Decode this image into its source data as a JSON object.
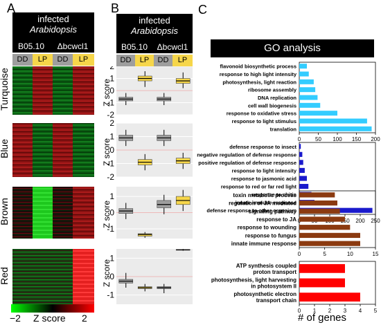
{
  "panels": {
    "a": "A",
    "b": "B",
    "c": "C"
  },
  "header": {
    "line1": "infected",
    "line2": "Arabidopsis"
  },
  "strains": {
    "wt": "B05.10",
    "mut": "Δbcwcl1"
  },
  "conditions": {
    "dd": "DD",
    "lp": "LP"
  },
  "modules": [
    "Turquoise",
    "Blue",
    "Brown",
    "Red"
  ],
  "zaxis": {
    "label": "Z score",
    "ticks": [
      "2",
      "1",
      "0",
      "-1",
      "-2"
    ],
    "ticks_short": [
      "1",
      "0",
      "-1"
    ]
  },
  "colorbar": {
    "min": "−2",
    "label": "Z score",
    "max": "2",
    "colors": [
      "#00ff00",
      "#000000",
      "#ff0000"
    ]
  },
  "go": {
    "title": "GO analysis",
    "xlabel": "# of genes"
  },
  "chart_data": [
    {
      "type": "bar",
      "orientation": "horizontal",
      "color": "#33ccff",
      "categories": [
        "flavonoid biosynthetic process",
        "response to high light intensity",
        "photosynthesis, light reaction",
        "ribosome assembly",
        "DNA replication",
        "cell wall biogenesis",
        "response to oxidative stress",
        "response to light stimulus",
        "translation"
      ],
      "values": [
        20,
        25,
        38,
        42,
        48,
        55,
        100,
        178,
        190
      ],
      "xlim": [
        0,
        200
      ],
      "xticks": [
        "0",
        "50",
        "100",
        "150",
        "200"
      ]
    },
    {
      "type": "bar",
      "orientation": "horizontal",
      "color": "#1a1acc",
      "categories": [
        "defense response to insect",
        "negative regulation of defense response",
        "positive regulation of defense response",
        "response to light intensity",
        "response to jasmonic acid",
        "response to red or far red light",
        "response to chitin",
        "innate immune response",
        "defense response to other organism"
      ],
      "values": [
        5,
        10,
        13,
        18,
        25,
        30,
        40,
        50,
        240
      ],
      "xlim": [
        0,
        250
      ],
      "xticks": [
        "0",
        "50",
        "100",
        "150",
        "200",
        "250"
      ]
    },
    {
      "type": "bar",
      "orientation": "horizontal",
      "color": "#8b3a10",
      "categories": [
        "toxin metabolic process",
        "regulation of JA mediated",
        "signaling pathway",
        "response to JA",
        "response to wounding",
        "response to fungus",
        "innate immune response"
      ],
      "values": [
        7,
        7.5,
        8,
        9,
        10,
        12,
        12
      ],
      "xlim": [
        0,
        15
      ],
      "xticks": [
        "0",
        "5",
        "10",
        "15"
      ]
    },
    {
      "type": "bar",
      "orientation": "horizontal",
      "color": "#ff0000",
      "categories": [
        "ATP synthesis coupled proton transport",
        "photosynthesis, light harvesting in photosystem II",
        "photosynthetic electron transport chain"
      ],
      "category_lines": [
        [
          "ATP synthesis coupled",
          "proton transport"
        ],
        [
          "photosynthesis, light harvesting",
          "in photosystem II"
        ],
        [
          "photosynthetic electron",
          "transport chain"
        ]
      ],
      "values": [
        3,
        3,
        4
      ],
      "xlim": [
        0,
        5
      ],
      "xticks": [
        "0",
        "1",
        "2",
        "3",
        "4",
        "5"
      ]
    }
  ],
  "boxplots": [
    {
      "module": "Turquoise",
      "ylim": [
        -2,
        2
      ],
      "boxes": [
        {
          "group": "B05.10 DD",
          "median": -0.7,
          "q1": -0.85,
          "q3": -0.55,
          "whisker_low": -1.2,
          "whisker_high": -0.2,
          "color": "#9e9e9e"
        },
        {
          "group": "B05.10 LP",
          "median": 1.0,
          "q1": 0.8,
          "q3": 1.2,
          "whisker_low": 0.3,
          "whisker_high": 1.6,
          "color": "#f6d64a"
        },
        {
          "group": "Δbcwcl1 DD",
          "median": -0.7,
          "q1": -0.85,
          "q3": -0.55,
          "whisker_low": -1.2,
          "whisker_high": -0.2,
          "color": "#9e9e9e"
        },
        {
          "group": "Δbcwcl1 LP",
          "median": 0.8,
          "q1": 0.6,
          "q3": 1.0,
          "whisker_low": 0.2,
          "whisker_high": 1.5,
          "color": "#f6d64a"
        }
      ]
    },
    {
      "module": "Blue",
      "ylim": [
        -2,
        2
      ],
      "boxes": [
        {
          "group": "B05.10 DD",
          "median": 0.9,
          "q1": 0.7,
          "q3": 1.1,
          "whisker_low": 0.3,
          "whisker_high": 1.5,
          "color": "#9e9e9e"
        },
        {
          "group": "B05.10 LP",
          "median": -0.9,
          "q1": -1.1,
          "q3": -0.7,
          "whisker_low": -1.5,
          "whisker_high": -0.3,
          "color": "#f6d64a"
        },
        {
          "group": "Δbcwcl1 DD",
          "median": 0.9,
          "q1": 0.7,
          "q3": 1.1,
          "whisker_low": 0.3,
          "whisker_high": 1.5,
          "color": "#9e9e9e"
        },
        {
          "group": "Δbcwcl1 LP",
          "median": -0.8,
          "q1": -1.0,
          "q3": -0.6,
          "whisker_low": -1.4,
          "whisker_high": -0.2,
          "color": "#f6d64a"
        }
      ]
    },
    {
      "module": "Brown",
      "ylim": [
        -1.6,
        1.6
      ],
      "boxes": [
        {
          "group": "B05.10 DD",
          "median": 0.1,
          "q1": -0.05,
          "q3": 0.25,
          "whisker_low": -0.4,
          "whisker_high": 0.6,
          "color": "#9e9e9e"
        },
        {
          "group": "B05.10 LP",
          "median": -1.35,
          "q1": -1.45,
          "q3": -1.3,
          "whisker_low": -1.55,
          "whisker_high": -1.2,
          "color": "#f6d64a"
        },
        {
          "group": "Δbcwcl1 DD",
          "median": 0.5,
          "q1": 0.3,
          "q3": 0.75,
          "whisker_low": -0.1,
          "whisker_high": 1.1,
          "color": "#9e9e9e"
        },
        {
          "group": "Δbcwcl1 LP",
          "median": 0.75,
          "q1": 0.5,
          "q3": 1.0,
          "whisker_low": 0.1,
          "whisker_high": 1.4,
          "color": "#f6d64a"
        }
      ]
    },
    {
      "module": "Red",
      "ylim": [
        -1.5,
        1.5
      ],
      "boxes": [
        {
          "group": "B05.10 DD",
          "median": -0.25,
          "q1": -0.35,
          "q3": -0.15,
          "whisker_low": -0.6,
          "whisker_high": 0.2,
          "color": "#9e9e9e"
        },
        {
          "group": "B05.10 LP",
          "median": -0.6,
          "q1": -0.65,
          "q3": -0.55,
          "whisker_low": -0.8,
          "whisker_high": -0.4,
          "color": "#f6d64a"
        },
        {
          "group": "Δbcwcl1 DD",
          "median": -0.6,
          "q1": -0.65,
          "q3": -0.55,
          "whisker_low": -0.9,
          "whisker_high": -0.4,
          "color": "#9e9e9e"
        },
        {
          "group": "Δbcwcl1 LP",
          "median": 1.45,
          "q1": 1.43,
          "q3": 1.47,
          "whisker_low": 1.4,
          "whisker_high": 1.5,
          "color": "#f6d64a"
        }
      ]
    }
  ]
}
